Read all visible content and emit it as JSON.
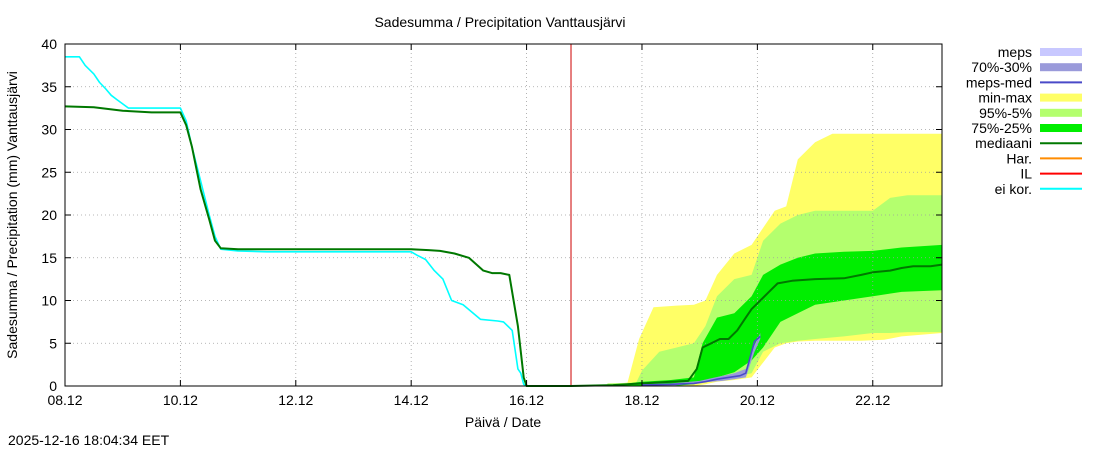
{
  "chart_data": {
    "type": "line",
    "title": "Sadesumma / Precipitation  Vanttausjärvi",
    "xlabel": "Päivä / Date",
    "ylabel": "Sadesumma / Precipitation (mm)  Vanttausjärvi",
    "timestamp": "2025-12-16 18:04:34 EET",
    "xlim": [
      0,
      15.2
    ],
    "ylim": [
      0,
      40
    ],
    "grid": true,
    "legend_position": "right",
    "x_ticks": [
      {
        "x": 0,
        "label": "08.12"
      },
      {
        "x": 2,
        "label": "10.12"
      },
      {
        "x": 4,
        "label": "12.12"
      },
      {
        "x": 6,
        "label": "14.12"
      },
      {
        "x": 8,
        "label": "16.12"
      },
      {
        "x": 10,
        "label": "18.12"
      },
      {
        "x": 12,
        "label": "20.12"
      },
      {
        "x": 14,
        "label": "22.12"
      }
    ],
    "y_ticks": [
      0,
      5,
      10,
      15,
      20,
      25,
      30,
      35,
      40
    ],
    "forecast_start_x": 8.77,
    "legend": [
      {
        "label": "meps",
        "color": "#c8c8ff",
        "kind": "box"
      },
      {
        "label": "70%-30%",
        "color": "#9a9ada",
        "kind": "box"
      },
      {
        "label": "meps-med",
        "color": "#4a4ac8",
        "kind": "line"
      },
      {
        "label": "min-max",
        "color": "#ffff66",
        "kind": "box"
      },
      {
        "label": "95%-5%",
        "color": "#b4ff6e",
        "kind": "box"
      },
      {
        "label": "75%-25%",
        "color": "#00ee00",
        "kind": "box"
      },
      {
        "label": "mediaani",
        "color": "#007800",
        "kind": "line"
      },
      {
        "label": "Har.",
        "color": "#ff8c00",
        "kind": "line"
      },
      {
        "label": "IL",
        "color": "#ff0000",
        "kind": "line"
      },
      {
        "label": "ei kor.",
        "color": "#00ffff",
        "kind": "line"
      }
    ],
    "bands": [
      {
        "name": "min-max",
        "color": "#ffff66",
        "x": [
          8.9,
          9.5,
          9.75,
          9.95,
          10.2,
          10.6,
          10.9,
          11.1,
          11.3,
          11.6,
          11.9,
          12.3,
          12.5,
          12.7,
          13.0,
          13.3,
          13.8,
          14.2,
          14.5,
          15.2
        ],
        "low": [
          0,
          0,
          0,
          0,
          0,
          0,
          0,
          0.2,
          0.5,
          0.7,
          1.0,
          4.5,
          5.0,
          5.2,
          5.3,
          5.3,
          5.3,
          5.4,
          5.8,
          6.2
        ],
        "high": [
          0,
          0.2,
          0.4,
          5.5,
          9.2,
          9.4,
          9.5,
          10.0,
          13.0,
          15.5,
          16.5,
          20.5,
          21.0,
          26.5,
          28.5,
          29.5,
          29.5,
          29.5,
          29.5,
          29.5
        ]
      },
      {
        "name": "95%-5%",
        "color": "#b4ff6e",
        "x": [
          9.4,
          9.9,
          10.0,
          10.3,
          10.6,
          10.9,
          11.1,
          11.3,
          11.6,
          11.9,
          12.1,
          12.4,
          12.7,
          13.0,
          13.5,
          14.0,
          14.3,
          14.6,
          15.2
        ],
        "low": [
          0,
          0,
          0,
          0,
          0,
          0.2,
          0.5,
          0.8,
          1.0,
          1.5,
          4.0,
          5.0,
          5.3,
          5.5,
          5.8,
          6.2,
          6.2,
          6.3,
          6.3
        ],
        "high": [
          0.3,
          0.4,
          1.8,
          4.0,
          4.5,
          5.0,
          7.0,
          10.5,
          12.5,
          13.0,
          17.0,
          19.0,
          20.0,
          20.5,
          20.5,
          20.5,
          22.0,
          22.3,
          22.3
        ]
      },
      {
        "name": "75%-25%",
        "color": "#00ee00",
        "x": [
          9.5,
          10.0,
          10.5,
          10.9,
          11.05,
          11.3,
          11.6,
          11.9,
          12.1,
          12.4,
          12.7,
          13.0,
          13.5,
          14.0,
          14.5,
          15.2
        ],
        "low": [
          0,
          0,
          0,
          0.2,
          0.5,
          1.0,
          1.6,
          3.0,
          4.5,
          7.5,
          8.5,
          9.5,
          10.0,
          10.5,
          11.0,
          11.2
        ],
        "high": [
          0.1,
          0.5,
          0.7,
          1.0,
          5.0,
          8.0,
          8.5,
          10.5,
          13.0,
          14.2,
          15.0,
          15.5,
          15.7,
          15.8,
          16.2,
          16.5
        ]
      },
      {
        "name": "70%-30%",
        "color": "#9a9ada",
        "x": [
          10.0,
          10.5,
          11.0,
          11.2,
          11.4,
          11.6,
          11.8,
          11.95,
          12.05
        ],
        "low": [
          0,
          0,
          0.4,
          0.5,
          0.6,
          0.8,
          1.0,
          4.0,
          5.5
        ],
        "high": [
          0.2,
          0.3,
          0.6,
          0.9,
          1.2,
          1.5,
          2.0,
          4.8,
          6.2
        ]
      }
    ],
    "series": [
      {
        "name": "ei kor.",
        "color": "#00ffff",
        "x": [
          0,
          0.25,
          0.35,
          0.5,
          0.6,
          0.7,
          0.8,
          0.9,
          1.0,
          1.1,
          1.2,
          1.4,
          2.0,
          2.1,
          2.2,
          2.35,
          2.5,
          2.6,
          2.7,
          3.0,
          3.5,
          4.0,
          5.0,
          6.0,
          6.1,
          6.25,
          6.4,
          6.55,
          6.7,
          6.9,
          7.2,
          7.5,
          7.6,
          7.75,
          7.85,
          7.9,
          7.95,
          8.0,
          8.77
        ],
        "values": [
          38.5,
          38.5,
          37.5,
          36.5,
          35.5,
          34.8,
          34.0,
          33.5,
          33.0,
          32.5,
          32.5,
          32.5,
          32.5,
          31.0,
          28.0,
          24.0,
          20.0,
          17.5,
          16.0,
          15.8,
          15.7,
          15.7,
          15.7,
          15.7,
          15.3,
          14.8,
          13.5,
          12.5,
          10.0,
          9.5,
          7.8,
          7.6,
          7.5,
          6.5,
          2.0,
          1.5,
          0.2,
          0.0,
          0.0
        ]
      },
      {
        "name": "mediaani",
        "color": "#007800",
        "x": [
          0,
          0.5,
          1.0,
          1.5,
          2.0,
          2.1,
          2.2,
          2.35,
          2.5,
          2.6,
          2.7,
          3.0,
          4.0,
          5.0,
          6.0,
          6.3,
          6.5,
          6.75,
          7.0,
          7.25,
          7.4,
          7.55,
          7.7,
          7.85,
          7.95,
          8.0,
          8.77,
          9.5,
          10.0,
          10.5,
          10.8,
          10.95,
          11.05,
          11.2,
          11.35,
          11.5,
          11.65,
          11.8,
          11.9,
          12.05,
          12.2,
          12.35,
          12.6,
          13.0,
          13.5,
          13.8,
          14.0,
          14.3,
          14.5,
          14.7,
          15.0,
          15.2
        ],
        "values": [
          32.7,
          32.6,
          32.2,
          32.0,
          32.0,
          30.5,
          28.0,
          23.0,
          19.5,
          17.0,
          16.1,
          16.0,
          16.0,
          16.0,
          16.0,
          15.9,
          15.8,
          15.5,
          15.0,
          13.5,
          13.2,
          13.2,
          13.0,
          7.0,
          1.0,
          0.0,
          0.0,
          0.1,
          0.3,
          0.5,
          0.6,
          2.0,
          4.5,
          5.0,
          5.5,
          5.5,
          6.5,
          8.0,
          9.0,
          10.0,
          11.0,
          12.0,
          12.3,
          12.5,
          12.6,
          13.0,
          13.3,
          13.5,
          13.8,
          14.0,
          14.0,
          14.2
        ]
      },
      {
        "name": "meps-med",
        "color": "#4a4ac8",
        "x": [
          10.0,
          10.5,
          10.9,
          11.1,
          11.3,
          11.5,
          11.7,
          11.8,
          11.9,
          11.95,
          12.05
        ],
        "values": [
          0.1,
          0.2,
          0.3,
          0.5,
          0.8,
          1.0,
          1.2,
          1.5,
          4.0,
          5.2,
          5.8
        ]
      }
    ]
  }
}
